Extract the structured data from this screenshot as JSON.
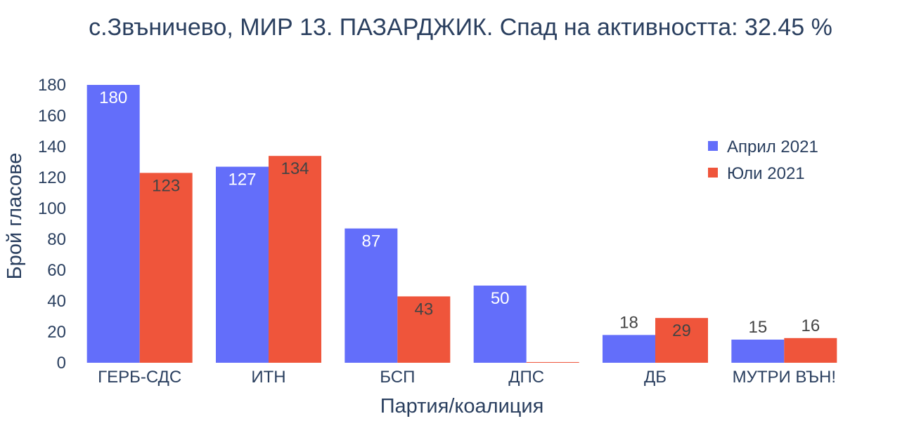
{
  "chart_data": {
    "type": "bar",
    "title": "с.Звъничево, МИР 13. ПАЗАРДЖИК. Спад на активността: 32.45 %",
    "xlabel": "Партия/коалиция",
    "ylabel": "Брой гласове",
    "categories": [
      "ГЕРБ-СДС",
      "ИТН",
      "БСП",
      "ДПС",
      "ДБ",
      "МУТРИ ВЪН!"
    ],
    "series": [
      {
        "name": "Април 2021",
        "color": "#636efa",
        "values": [
          180,
          127,
          87,
          50,
          18,
          15
        ]
      },
      {
        "name": "Юли 2021",
        "color": "#ef553b",
        "values": [
          123,
          134,
          43,
          0,
          29,
          16
        ]
      }
    ],
    "ylim": [
      0,
      180
    ],
    "yticks": [
      0,
      20,
      40,
      60,
      80,
      100,
      120,
      140,
      160,
      180
    ],
    "grid": false,
    "legend_position": "top-right"
  }
}
